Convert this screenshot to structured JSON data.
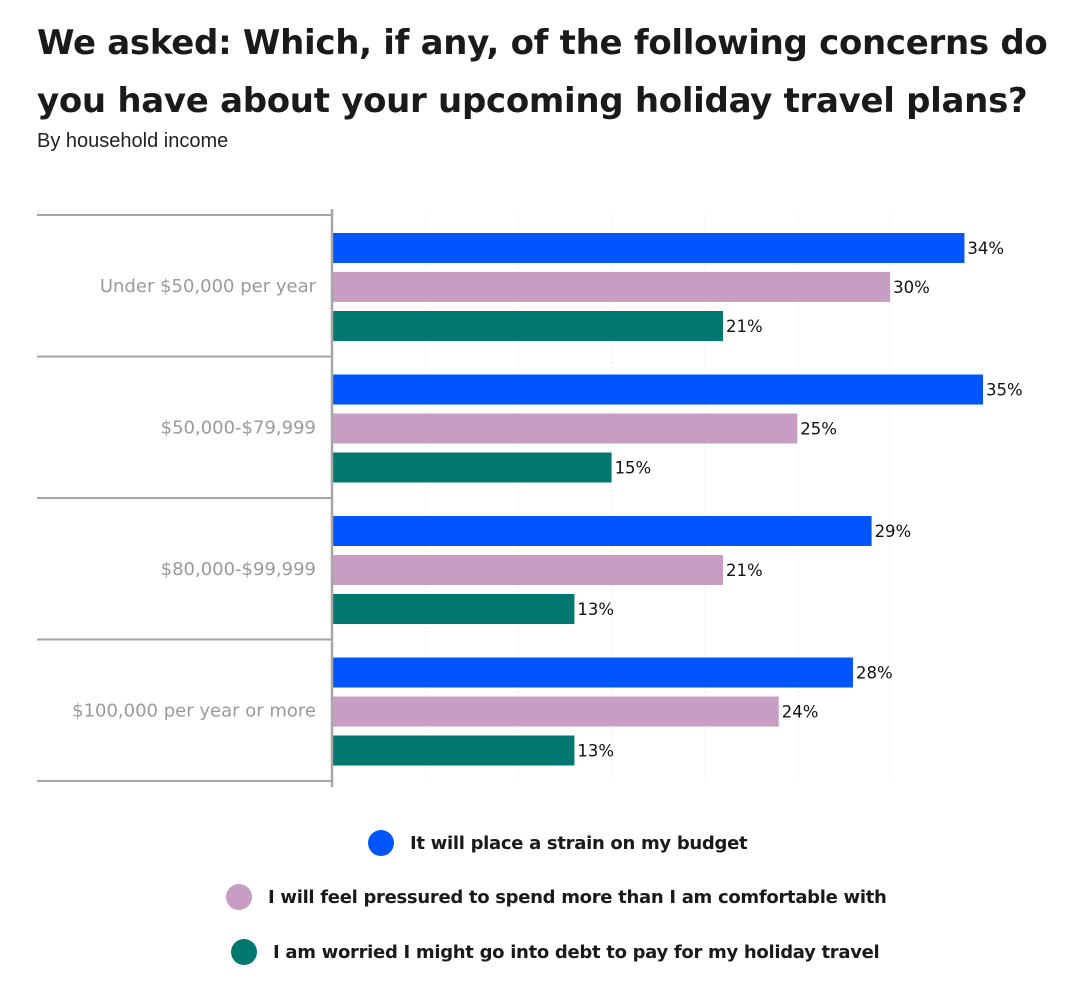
{
  "chart_data": {
    "type": "bar",
    "orientation": "horizontal",
    "title": "We asked: Which, if any, of the following concerns do you have about your upcoming holiday travel plans?",
    "subtitle": "By household income",
    "xlabel": "",
    "ylabel": "",
    "xlim": [
      0,
      35
    ],
    "value_suffix": "%",
    "grid": true,
    "legend_position": "bottom",
    "categories": [
      "Under $50,000 per year",
      "$50,000-$79,999",
      "$80,000-$99,999",
      "$100,000 per year or more"
    ],
    "series": [
      {
        "name": "It will place a strain on my budget",
        "color": "#0055ff",
        "values": [
          34,
          35,
          29,
          28
        ]
      },
      {
        "name": "I will feel pressured to spend more than I am comfortable with",
        "color": "#c89dc4",
        "values": [
          30,
          25,
          21,
          24
        ]
      },
      {
        "name": "I am worried I might go into debt to pay for my holiday travel",
        "color": "#007870",
        "values": [
          21,
          15,
          13,
          13
        ]
      }
    ]
  }
}
